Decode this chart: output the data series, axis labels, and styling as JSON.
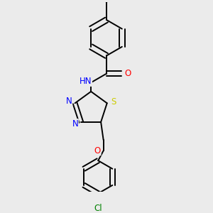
{
  "bg_color": "#ebebeb",
  "bond_color": "#000000",
  "bond_width": 1.4,
  "atom_colors": {
    "N": "#0000ff",
    "O": "#ff0000",
    "S": "#cccc00",
    "Cl": "#008000",
    "C": "#000000"
  },
  "font_size": 8.5,
  "fig_width": 3.0,
  "fig_height": 3.0,
  "dpi": 100,
  "xlim": [
    -2.5,
    2.5
  ],
  "ylim": [
    -4.5,
    4.5
  ]
}
